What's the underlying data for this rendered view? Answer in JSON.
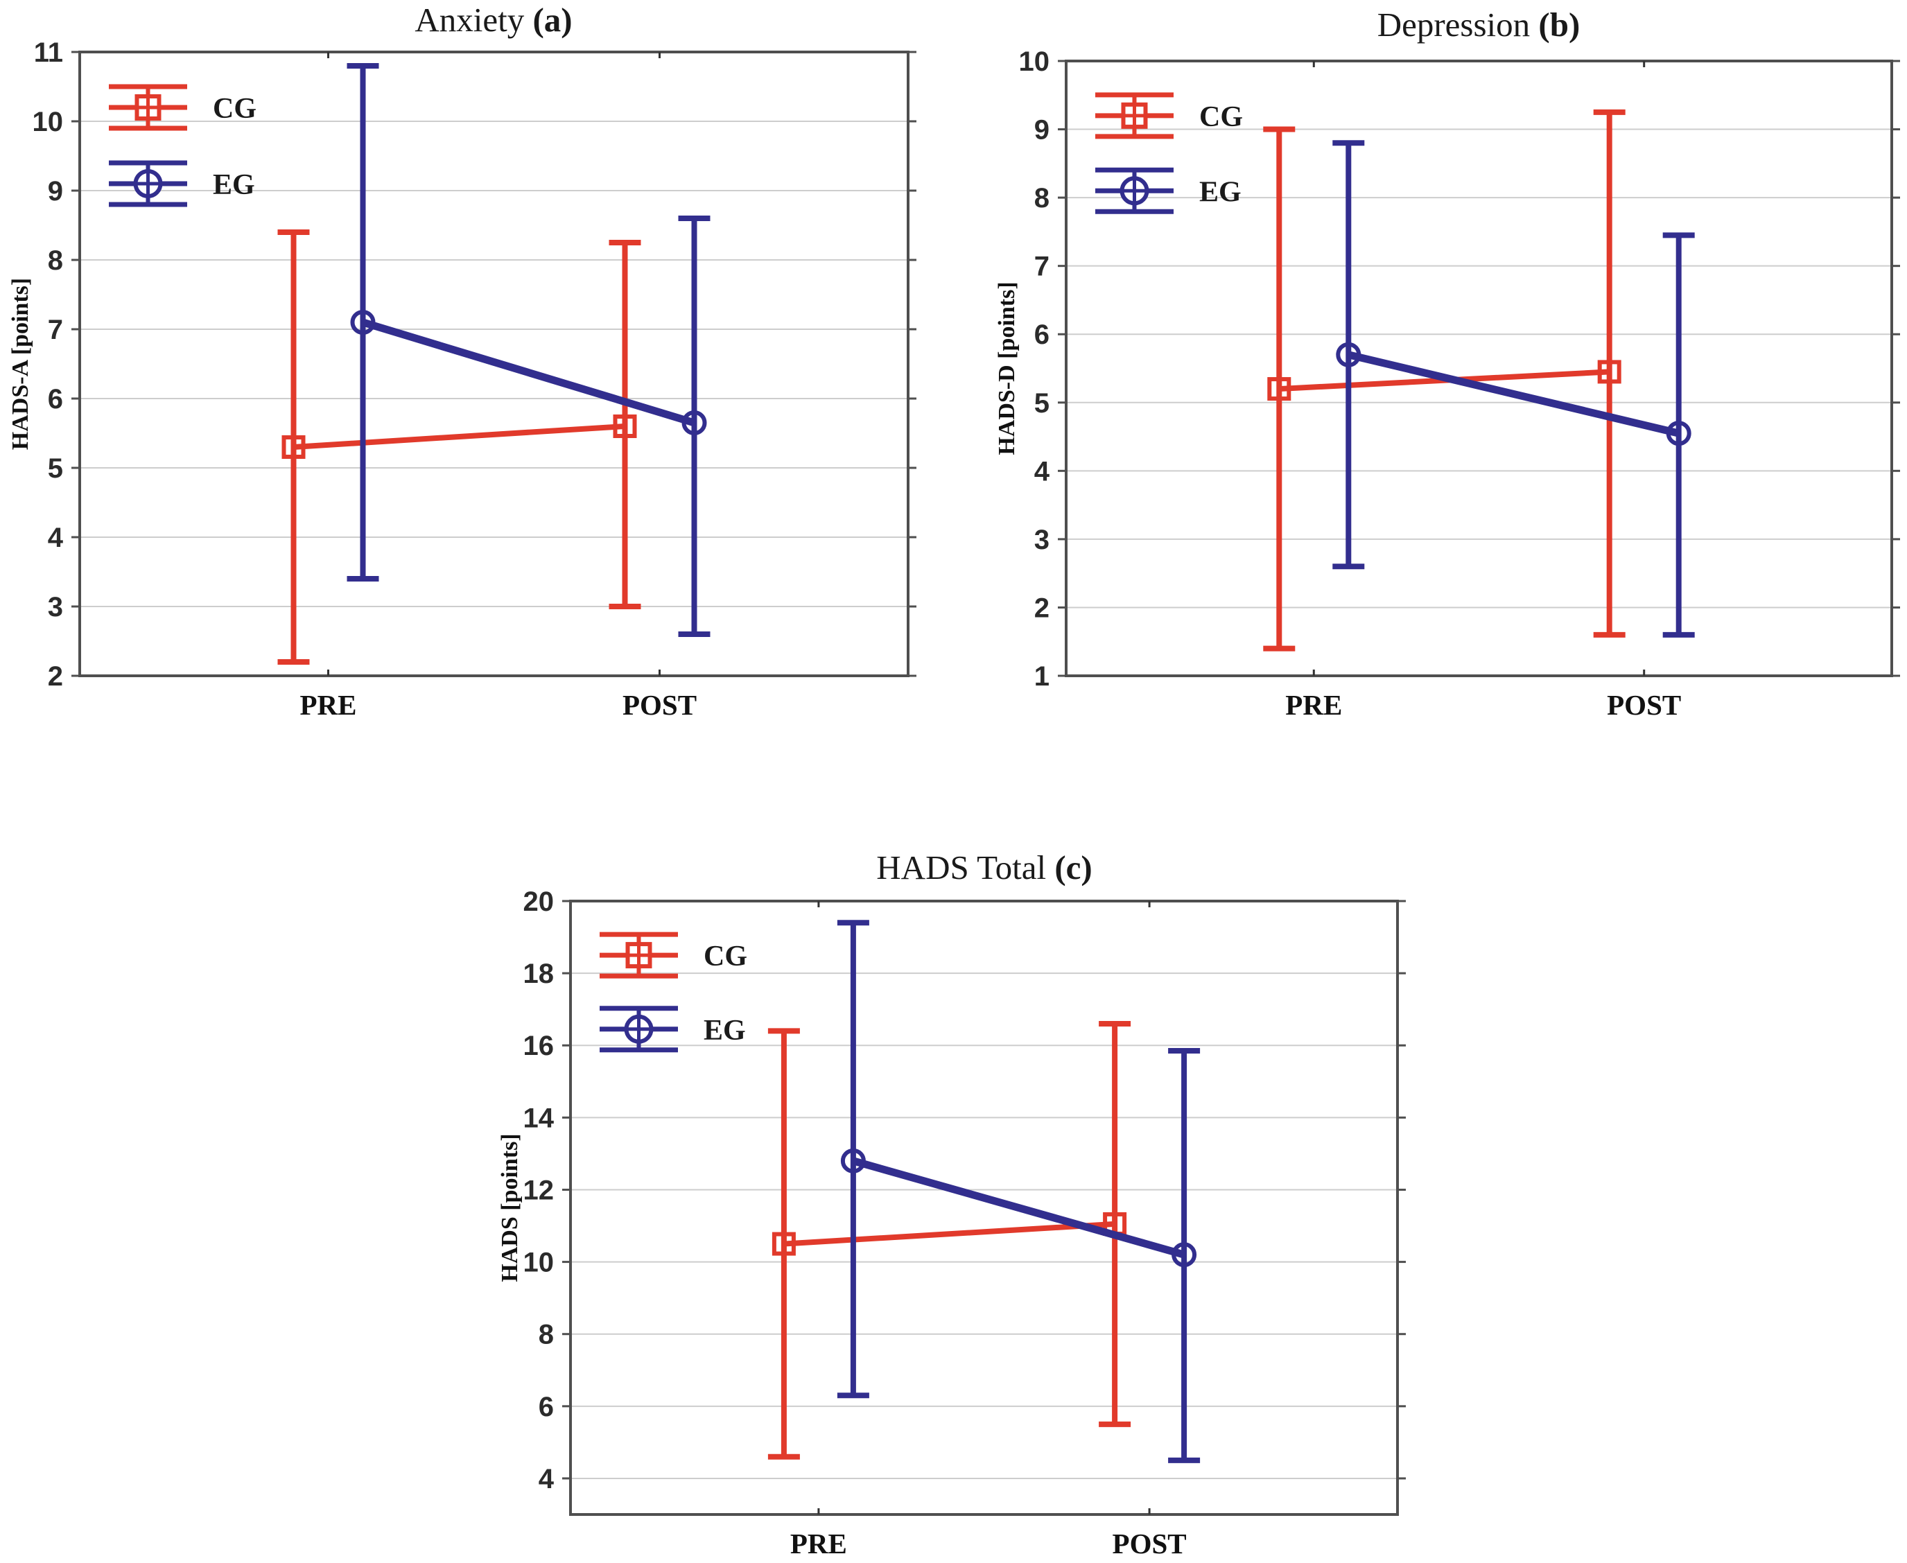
{
  "figure": {
    "background": "#ffffff",
    "frame_color": "#4f4f4f",
    "gridline_color": "#cdcdcd"
  },
  "chart_data": [
    {
      "id": "a",
      "type": "line",
      "title_prefix": "Anxiety ",
      "title_bold": "(a)",
      "ylabel": "HADS-A [points]",
      "ymin": 2,
      "ymax": 11,
      "yticks": [
        2,
        3,
        4,
        5,
        6,
        7,
        8,
        9,
        10,
        11
      ],
      "gridlines": [
        3,
        4,
        5,
        6,
        7,
        8,
        9,
        10
      ],
      "categories": [
        "PRE",
        "POST"
      ],
      "legend_position": "top-left-inside",
      "series": [
        {
          "name": "CG",
          "marker": "square",
          "color": "#e13a2b",
          "means": [
            5.3,
            5.6
          ],
          "lower": [
            2.2,
            3.0
          ],
          "upper": [
            8.4,
            8.25
          ]
        },
        {
          "name": "EG",
          "marker": "circle",
          "color": "#322e8e",
          "means": [
            7.1,
            5.65
          ],
          "lower": [
            3.4,
            2.6
          ],
          "upper": [
            10.8,
            8.6
          ]
        }
      ],
      "legend_y": [
        10.2,
        9.1
      ]
    },
    {
      "id": "b",
      "type": "line",
      "title_prefix": "Depression ",
      "title_bold": "(b)",
      "ylabel": "HADS-D [points]",
      "ymin": 1,
      "ymax": 10,
      "yticks": [
        1,
        2,
        3,
        4,
        5,
        6,
        7,
        8,
        9,
        10
      ],
      "gridlines": [
        2,
        3,
        4,
        5,
        6,
        7,
        8,
        9
      ],
      "categories": [
        "PRE",
        "POST"
      ],
      "legend_position": "top-left-inside",
      "series": [
        {
          "name": "CG",
          "marker": "square",
          "color": "#e13a2b",
          "means": [
            5.2,
            5.45
          ],
          "lower": [
            1.4,
            1.6
          ],
          "upper": [
            9.0,
            9.25
          ]
        },
        {
          "name": "EG",
          "marker": "circle",
          "color": "#322e8e",
          "means": [
            5.7,
            4.55
          ],
          "lower": [
            2.6,
            1.6
          ],
          "upper": [
            8.8,
            7.45
          ]
        }
      ],
      "legend_y": [
        9.2,
        8.1
      ]
    },
    {
      "id": "c",
      "type": "line",
      "title_prefix": "HADS Total ",
      "title_bold": "(c)",
      "ylabel": "HADS [points]",
      "ymin": 3,
      "ymax": 20,
      "yticks": [
        4,
        6,
        8,
        10,
        12,
        14,
        16,
        18,
        20
      ],
      "gridlines": [
        4,
        6,
        8,
        10,
        12,
        14,
        16,
        18
      ],
      "categories": [
        "PRE",
        "POST"
      ],
      "legend_position": "top-left-inside",
      "series": [
        {
          "name": "CG",
          "marker": "square",
          "color": "#e13a2b",
          "means": [
            10.5,
            11.05
          ],
          "lower": [
            4.6,
            5.5
          ],
          "upper": [
            16.4,
            16.6
          ]
        },
        {
          "name": "EG",
          "marker": "circle",
          "color": "#322e8e",
          "means": [
            12.8,
            10.2
          ],
          "lower": [
            6.3,
            4.5
          ],
          "upper": [
            19.4,
            15.85
          ]
        }
      ],
      "legend_y": [
        18.5,
        16.45
      ]
    }
  ]
}
